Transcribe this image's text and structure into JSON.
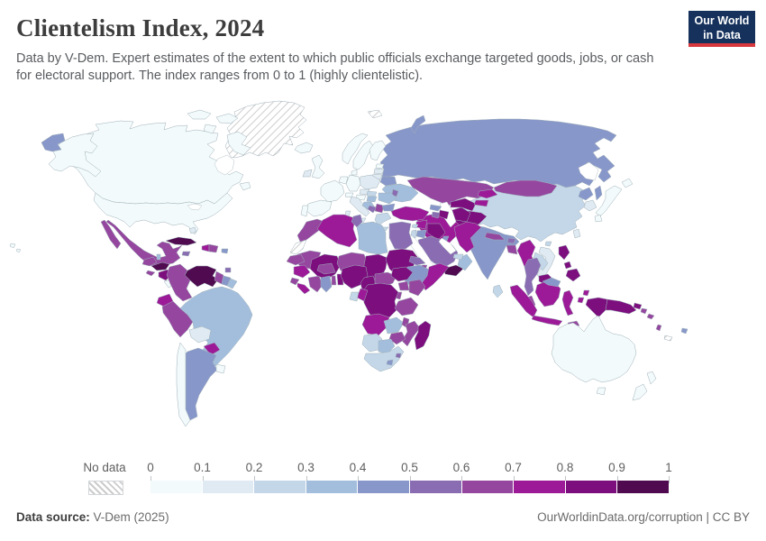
{
  "header": {
    "title": "Clientelism Index, 2024",
    "subtitle_lines": [
      "Data by V-Dem. Expert estimates of the extent to which public officials exchange targeted goods, jobs, or cash",
      "for electoral support. The index ranges from 0 to 1 (highly clientelistic)."
    ],
    "logo": {
      "line1": "Our World",
      "line2": "in Data",
      "bg": "#16325c",
      "accent": "#d7383d"
    }
  },
  "footer": {
    "source_label": "Data source:",
    "source_value": " V-Dem (2025)",
    "credit": "OurWorldinData.org/corruption | CC BY"
  },
  "chart_data": {
    "type": "choropleth_map",
    "title": "Clientelism Index, 2024",
    "value_range": [
      0,
      1
    ],
    "legend": {
      "no_data_label": "No data",
      "tick_labels": [
        "0",
        "0.1",
        "0.2",
        "0.3",
        "0.4",
        "0.5",
        "0.6",
        "0.7",
        "0.8",
        "0.9",
        "1"
      ],
      "bin_colors": [
        "#f2fafb",
        "#dfeaf2",
        "#c3d7e9",
        "#a3bedc",
        "#8897c9",
        "#8a6cb3",
        "#95479f",
        "#9c1a97",
        "#7c0e7e",
        "#4f0a50"
      ],
      "position": "bottom"
    },
    "regions_by_bin": {
      "canada": 0,
      "united-states": 0,
      "greenland": "nodata",
      "iceland": 0,
      "mexico": 6,
      "guatemala": 6,
      "belize": 3,
      "honduras": 9,
      "el-salvador": 6,
      "nicaragua": 8,
      "costa-rica": 0,
      "panama": 6,
      "cuba": 9,
      "jamaica": 5,
      "haiti": 7,
      "dominican-republic": 6,
      "puerto-rico": 4,
      "bahamas": 1,
      "trinidad-and-tobago": 5,
      "venezuela": 9,
      "colombia": 6,
      "guyana": 6,
      "suriname": 4,
      "french-guiana": 3,
      "ecuador": 7,
      "peru": 6,
      "brazil": 3,
      "bolivia": 1,
      "paraguay": 7,
      "chile": 0,
      "argentina": 4,
      "uruguay": 0,
      "united-kingdom": 0,
      "ireland": 1,
      "norway": 0,
      "sweden": 0,
      "finland": 0,
      "denmark": 0,
      "estonia": 0,
      "latvia": 1,
      "lithuania": 1,
      "poland": 1,
      "germany": 0,
      "benelux": 0,
      "france": 0,
      "spain": 0,
      "portugal": 0,
      "switzerland": 0,
      "italy": 1,
      "czechia": 1,
      "austria": 0,
      "slovakia": 2,
      "hungary": 3,
      "croatia": 3,
      "bosnia": 5,
      "serbia": 6,
      "albania": 7,
      "greece": 2,
      "romania": 3,
      "bulgaria": 4,
      "moldova": 5,
      "belarus": 4,
      "ukraine": 3,
      "russia": 4,
      "svalbard": "nodata",
      "kazakhstan": 6,
      "uzbekistan": 8,
      "turkmenistan": 8,
      "kyrgyzstan": 7,
      "tajikistan": 7,
      "turkey": 7,
      "cyprus": 2,
      "georgia": 4,
      "armenia": 5,
      "azerbaijan": 8,
      "syria": 7,
      "israel": 2,
      "jordan": 4,
      "iraq": 8,
      "kuwait": 4,
      "saudi-arabia": 5,
      "yemen": 9,
      "oman": 3,
      "uae": 2,
      "iran": 7,
      "afghanistan": 8,
      "pakistan": 7,
      "india": 4,
      "nepal": 6,
      "bhutan": 5,
      "bangladesh": 6,
      "sri-lanka": 2,
      "myanmar": 7,
      "thailand": 5,
      "laos": 2,
      "vietnam": 1,
      "cambodia": 8,
      "malaysia": 6,
      "malaysia-borneo": 4,
      "china": 2,
      "mongolia": 6,
      "north-korea": 4,
      "south-korea": 1,
      "japan": 0,
      "taiwan": 1,
      "philippines": 8,
      "indonesia-sumatra": 7,
      "indonesia-java": 7,
      "indonesia-borneo": 7,
      "indonesia-sulawesi": 7,
      "indonesia-maluku": 7,
      "indonesia-papua": 8,
      "papua-new-guinea": 8,
      "timor-leste": 6,
      "solomon-islands": 6,
      "vanuatu": 6,
      "fiji": 4,
      "new-caledonia": "nodata",
      "australia": 0,
      "new-zealand": 0,
      "morocco": 6,
      "western-sahara": "nodata",
      "algeria": 7,
      "tunisia": 5,
      "libya": 3,
      "egypt": 5,
      "mauritania": 6,
      "mali": 8,
      "niger": 6,
      "chad": 8,
      "sudan": 8,
      "eritrea": 5,
      "djibouti": 6,
      "ethiopia": 4,
      "somalia": 7,
      "senegal": 6,
      "guinea": 7,
      "sierra-leone": 6,
      "liberia": 7,
      "ivory-coast": 6,
      "ghana": 4,
      "togo": 6,
      "benin": 8,
      "burkina-faso": 6,
      "nigeria": 8,
      "cameroon": 8,
      "central-african-republic": 6,
      "south-sudan": 8,
      "uganda": 6,
      "kenya": 6,
      "rwanda-burundi": 6,
      "drc": 8,
      "congo": 7,
      "gabon": 2,
      "tanzania": 6,
      "angola": 7,
      "zambia": 3,
      "malawi": 6,
      "mozambique": 6,
      "zimbabwe": 6,
      "namibia": 2,
      "botswana": 3,
      "south-africa": 2,
      "lesotho": 4,
      "eswatini": 5,
      "madagascar": 8
    }
  }
}
